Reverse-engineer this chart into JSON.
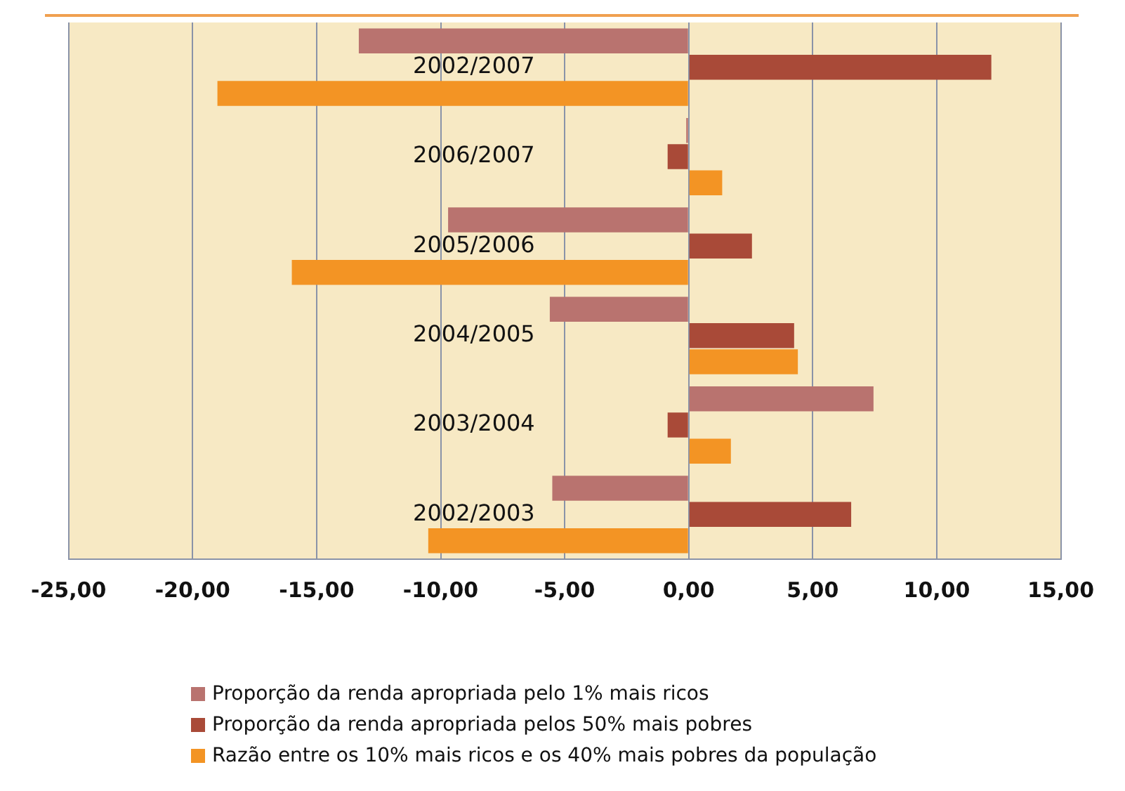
{
  "chart_data": {
    "type": "bar",
    "orientation": "horizontal",
    "categories": [
      "2002/2007",
      "2006/2007",
      "2005/2006",
      "2004/2005",
      "2003/2004",
      "2002/2003"
    ],
    "series": [
      {
        "name": "Proporção da renda apropriada pelo 1% mais ricos",
        "color": "#b9736f",
        "values": [
          -13.3,
          -0.1,
          -9.7,
          -5.6,
          7.45,
          -5.5
        ]
      },
      {
        "name": "Proporção da renda apropriada pelos 50% mais pobres",
        "color": "#a94a38",
        "values": [
          12.2,
          -0.85,
          2.55,
          4.25,
          -0.85,
          6.55
        ]
      },
      {
        "name": "Razão entre os 10% mais ricos e os 40% mais pobres da população",
        "color": "#f39424",
        "values": [
          -19.0,
          1.35,
          -16.0,
          4.4,
          1.7,
          -10.5
        ]
      }
    ],
    "xlim": [
      -25,
      15
    ],
    "xticks": [
      {
        "value": -25,
        "label": "-25,00"
      },
      {
        "value": -20,
        "label": "-20,00"
      },
      {
        "value": -15,
        "label": "-15,00"
      },
      {
        "value": -10,
        "label": "-10,00"
      },
      {
        "value": -5,
        "label": "-5,00"
      },
      {
        "value": 0,
        "label": "0,00"
      },
      {
        "value": 5,
        "label": "5,00"
      },
      {
        "value": 10,
        "label": "10,00"
      },
      {
        "value": 15,
        "label": "15,00"
      }
    ],
    "grid": "x",
    "legend": "bottom"
  }
}
